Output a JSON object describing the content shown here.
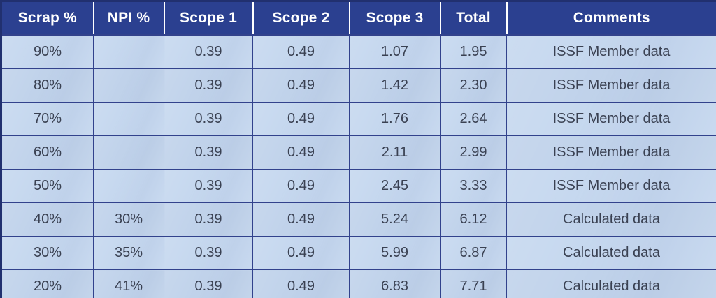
{
  "table": {
    "headers": [
      "Scrap %",
      "NPI %",
      "Scope 1",
      "Scope 2",
      "Scope 3",
      "Total",
      "Comments"
    ],
    "rows": [
      [
        "90%",
        "",
        "0.39",
        "0.49",
        "1.07",
        "1.95",
        "ISSF Member data"
      ],
      [
        "80%",
        "",
        "0.39",
        "0.49",
        "1.42",
        "2.30",
        "ISSF Member data"
      ],
      [
        "70%",
        "",
        "0.39",
        "0.49",
        "1.76",
        "2.64",
        "ISSF Member data"
      ],
      [
        "60%",
        "",
        "0.39",
        "0.49",
        "2.11",
        "2.99",
        "ISSF Member data"
      ],
      [
        "50%",
        "",
        "0.39",
        "0.49",
        "2.45",
        "3.33",
        "ISSF Member data"
      ],
      [
        "40%",
        "30%",
        "0.39",
        "0.49",
        "5.24",
        "6.12",
        "Calculated data"
      ],
      [
        "30%",
        "35%",
        "0.39",
        "0.49",
        "5.99",
        "6.87",
        "Calculated data"
      ],
      [
        "20%",
        "41%",
        "0.39",
        "0.49",
        "6.83",
        "7.71",
        "Calculated data"
      ]
    ]
  },
  "colors": {
    "header_bg": "#2b4090",
    "header_text": "#ffffff",
    "body_bg": "#c6d8ef",
    "body_bg_alt": "#c1d3eb",
    "grid_line": "#32428c",
    "outer_border": "#21306f",
    "body_text": "#3a4152"
  }
}
